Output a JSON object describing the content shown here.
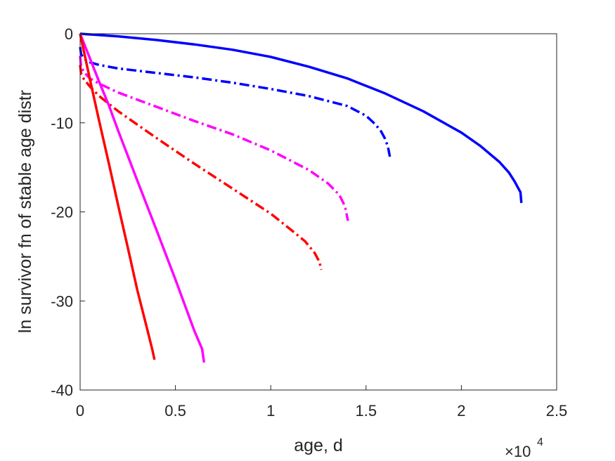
{
  "chart_data": {
    "type": "line",
    "title": "",
    "xlabel": "age, d",
    "ylabel": "ln survivor fn of stable age distr",
    "x_multiplier_base": "×10",
    "x_multiplier_exp": "4",
    "xlim": [
      0,
      2.5
    ],
    "ylim": [
      -40,
      0
    ],
    "x_ticks": [
      "0",
      "0.5",
      "1",
      "1.5",
      "2",
      "2.5"
    ],
    "y_ticks": [
      "0",
      "-10",
      "-20",
      "-30",
      "-40"
    ],
    "grid": false,
    "legend": "none",
    "series": [
      {
        "color": "#0000ff",
        "dash": "solid",
        "x": [
          0,
          0.2,
          0.4,
          0.6,
          0.8,
          1.0,
          1.2,
          1.4,
          1.6,
          1.8,
          2.0,
          2.1,
          2.2,
          2.25,
          2.28,
          2.31,
          2.315
        ],
        "y": [
          0,
          -0.3,
          -0.7,
          -1.2,
          -1.8,
          -2.6,
          -3.7,
          -5.0,
          -6.7,
          -8.7,
          -11.1,
          -12.6,
          -14.4,
          -15.6,
          -16.6,
          -17.8,
          -19
        ]
      },
      {
        "color": "#0000ff",
        "dash": "dashdot",
        "x": [
          0,
          0.005,
          0.02,
          0.05,
          0.1,
          0.2,
          0.4,
          0.6,
          0.8,
          1.0,
          1.2,
          1.4,
          1.5,
          1.55,
          1.58,
          1.6,
          1.615,
          1.625
        ],
        "y": [
          -1.5,
          -2.3,
          -2.8,
          -3.2,
          -3.5,
          -3.9,
          -4.4,
          -4.9,
          -5.5,
          -6.2,
          -7.0,
          -8.1,
          -9.2,
          -10.2,
          -11.0,
          -11.8,
          -12.7,
          -13.8
        ]
      },
      {
        "color": "#ff00ff",
        "dash": "dashdot",
        "x": [
          0,
          0.005,
          0.02,
          0.05,
          0.1,
          0.2,
          0.4,
          0.6,
          0.8,
          1.0,
          1.2,
          1.3,
          1.36,
          1.39,
          1.405
        ],
        "y": [
          -2.5,
          -3.7,
          -4.3,
          -5.0,
          -5.6,
          -6.6,
          -8.2,
          -9.8,
          -11.3,
          -13.1,
          -15.3,
          -16.8,
          -18.1,
          -19.4,
          -21
        ]
      },
      {
        "color": "#ff0000",
        "dash": "dashdot",
        "x": [
          0,
          0.005,
          0.02,
          0.05,
          0.1,
          0.2,
          0.4,
          0.6,
          0.8,
          1.0,
          1.1,
          1.18,
          1.23,
          1.255,
          1.265
        ],
        "y": [
          -3.5,
          -4.5,
          -5.1,
          -5.9,
          -7.0,
          -8.7,
          -11.7,
          -14.6,
          -17.4,
          -20.2,
          -21.9,
          -23.3,
          -24.6,
          -25.6,
          -26.5
        ]
      },
      {
        "color": "#ff00ff",
        "dash": "solid",
        "x": [
          0,
          0.05,
          0.1,
          0.15,
          0.2,
          0.3,
          0.4,
          0.5,
          0.6,
          0.64,
          0.65
        ],
        "y": [
          0,
          -2.7,
          -5.4,
          -8.0,
          -10.9,
          -16.5,
          -22.0,
          -27.6,
          -33.4,
          -35.4,
          -36.9
        ]
      },
      {
        "color": "#ff0000",
        "dash": "solid",
        "x": [
          0,
          0.05,
          0.1,
          0.15,
          0.2,
          0.25,
          0.3,
          0.35,
          0.38,
          0.39
        ],
        "y": [
          0,
          -5.0,
          -9.8,
          -14.5,
          -19.3,
          -24.0,
          -28.8,
          -33.0,
          -35.6,
          -36.6
        ]
      }
    ]
  }
}
